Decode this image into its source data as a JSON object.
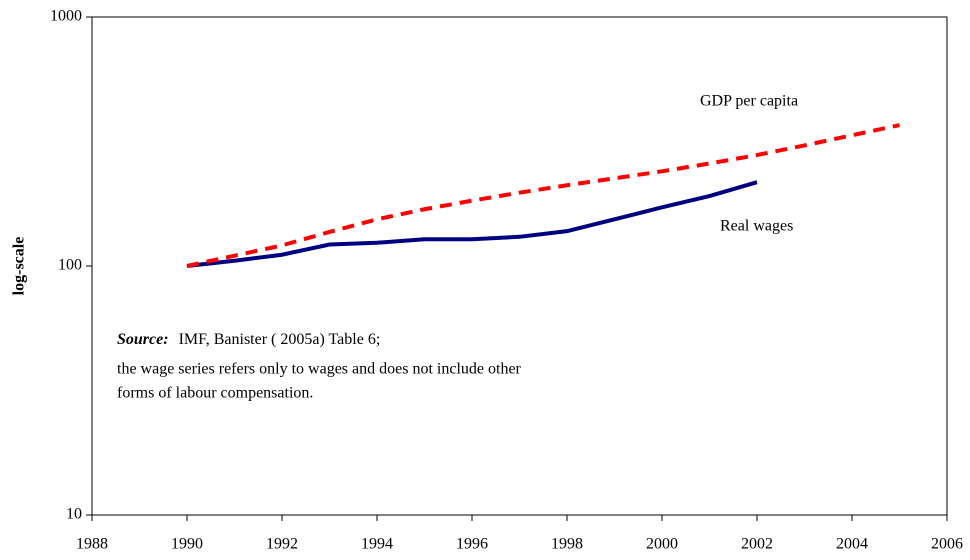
{
  "chart_data": {
    "type": "line",
    "y_label": "log-scale",
    "xlim": [
      1988,
      2006
    ],
    "xticks": [
      1988,
      1990,
      1992,
      1994,
      1996,
      1998,
      2000,
      2002,
      2004,
      2006
    ],
    "ylim": [
      10,
      1000
    ],
    "yticks": [
      10,
      100,
      1000
    ],
    "log_y": true,
    "grid": false,
    "series": [
      {
        "name": "Real wages",
        "color": "#000080",
        "dashed": false,
        "x": [
          1990,
          1991,
          1992,
          1993,
          1994,
          1995,
          1996,
          1997,
          1998,
          1999,
          2000,
          2001,
          2002
        ],
        "values": [
          100,
          105,
          111,
          122,
          124,
          128,
          128,
          131,
          138,
          154,
          172,
          191,
          217
        ]
      },
      {
        "name": "GDP per capita",
        "color": "#ff0000",
        "dashed": true,
        "x": [
          1990,
          1991,
          1992,
          1993,
          1994,
          1995,
          1996,
          1997,
          1998,
          1999,
          2000,
          2001,
          2002,
          2003,
          2004,
          2005
        ],
        "values": [
          100,
          110,
          121,
          137,
          154,
          169,
          183,
          197,
          211,
          225,
          240,
          258,
          279,
          305,
          335,
          368
        ]
      }
    ],
    "source": {
      "label": "Source:",
      "lines": [
        "IMF, Banister ( 2005a) Table 6;",
        "the wage series refers only to wages and does not include other",
        "forms of labour compensation."
      ]
    }
  }
}
